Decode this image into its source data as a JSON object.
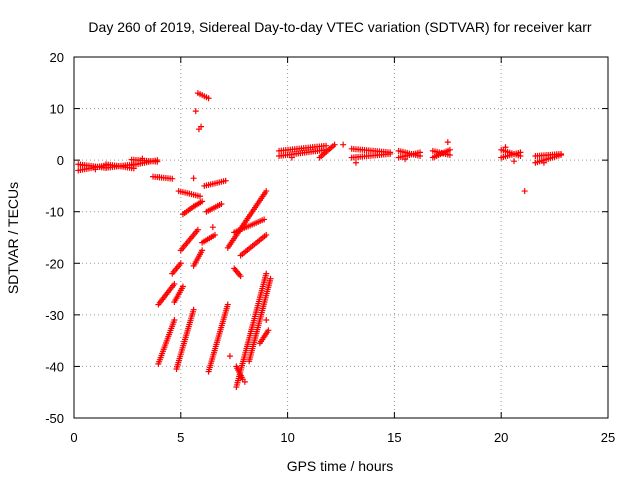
{
  "chart_data": {
    "type": "scatter",
    "title": "Day 260 of 2019, Sidereal Day-to-day VTEC variation (SDTVAR) for receiver karr",
    "xlabel": "GPS time / hours",
    "ylabel": "SDTVAR / TECUs",
    "xlim": [
      0,
      25
    ],
    "ylim": [
      -50,
      20
    ],
    "xticks": [
      0,
      5,
      10,
      15,
      20,
      25
    ],
    "yticks": [
      -50,
      -40,
      -30,
      -20,
      -10,
      0,
      10,
      20
    ],
    "grid": true,
    "marker": "+",
    "series_color": "#ff0000",
    "series": [
      {
        "name": "SDTVAR",
        "segments": [
          {
            "x0": 0.2,
            "y0": -0.8,
            "x1": 1.5,
            "y1": -1.5
          },
          {
            "x0": 0.2,
            "y0": -2.0,
            "x1": 1.5,
            "y1": -1.0
          },
          {
            "x0": 1.5,
            "y0": -1.5,
            "x1": 2.8,
            "y1": -0.8
          },
          {
            "x0": 1.5,
            "y0": -0.8,
            "x1": 2.8,
            "y1": -1.6
          },
          {
            "x0": 2.7,
            "y0": 0.1,
            "x1": 3.9,
            "y1": -0.3
          },
          {
            "x0": 2.7,
            "y0": -1.0,
            "x1": 3.9,
            "y1": 0.0
          },
          {
            "x0": 3.7,
            "y0": -3.2,
            "x1": 4.6,
            "y1": -3.6
          },
          {
            "x0": 3.95,
            "y0": -39.5,
            "x1": 4.7,
            "y1": -31.0
          },
          {
            "x0": 3.95,
            "y0": -28.0,
            "x1": 4.7,
            "y1": -24.0
          },
          {
            "x0": 4.8,
            "y0": -40.5,
            "x1": 5.6,
            "y1": -29.0
          },
          {
            "x0": 4.7,
            "y0": -27.5,
            "x1": 5.1,
            "y1": -24.5
          },
          {
            "x0": 4.6,
            "y0": -22.0,
            "x1": 5.0,
            "y1": -20.0
          },
          {
            "x0": 5.0,
            "y0": -17.5,
            "x1": 5.8,
            "y1": -13.5
          },
          {
            "x0": 5.1,
            "y0": -10.5,
            "x1": 5.6,
            "y1": -9.0
          },
          {
            "x0": 5.6,
            "y0": -9.0,
            "x1": 6.0,
            "y1": -8.0
          },
          {
            "x0": 4.9,
            "y0": -6.0,
            "x1": 5.9,
            "y1": -7.0
          },
          {
            "x0": 5.6,
            "y0": -20.5,
            "x1": 6.0,
            "y1": -17.5
          },
          {
            "x0": 6.0,
            "y0": -16.0,
            "x1": 6.6,
            "y1": -14.5
          },
          {
            "x0": 6.2,
            "y0": -10.0,
            "x1": 6.9,
            "y1": -8.5
          },
          {
            "x0": 6.1,
            "y0": -5.0,
            "x1": 7.1,
            "y1": -4.0
          },
          {
            "x0": 6.3,
            "y0": -41.0,
            "x1": 7.2,
            "y1": -28.0
          },
          {
            "x0": 7.5,
            "y0": -21.0,
            "x1": 7.8,
            "y1": -22.5
          },
          {
            "x0": 7.6,
            "y0": -40.0,
            "x1": 7.9,
            "y1": -42.5
          },
          {
            "x0": 7.6,
            "y0": -44.0,
            "x1": 9.0,
            "y1": -22.0
          },
          {
            "x0": 7.2,
            "y0": -17.0,
            "x1": 9.0,
            "y1": -6.0
          },
          {
            "x0": 7.5,
            "y0": -14.0,
            "x1": 8.9,
            "y1": -11.5
          },
          {
            "x0": 7.8,
            "y0": -18.5,
            "x1": 9.0,
            "y1": -14.5
          },
          {
            "x0": 8.2,
            "y0": -39.0,
            "x1": 9.2,
            "y1": -23.0
          },
          {
            "x0": 8.7,
            "y0": -35.5,
            "x1": 9.1,
            "y1": -33.0
          },
          {
            "x0": 5.8,
            "y0": 13.0,
            "x1": 6.3,
            "y1": 12.0
          },
          {
            "x0": 9.6,
            "y0": 0.8,
            "x1": 11.8,
            "y1": 2.0
          },
          {
            "x0": 9.6,
            "y0": 1.8,
            "x1": 11.8,
            "y1": 2.8
          },
          {
            "x0": 11.5,
            "y0": 0.5,
            "x1": 12.2,
            "y1": 3.0
          },
          {
            "x0": 13.0,
            "y0": 2.2,
            "x1": 14.8,
            "y1": 1.5
          },
          {
            "x0": 13.0,
            "y0": 0.5,
            "x1": 14.8,
            "y1": 1.2
          },
          {
            "x0": 15.2,
            "y0": 1.8,
            "x1": 16.2,
            "y1": 0.8
          },
          {
            "x0": 15.2,
            "y0": 0.5,
            "x1": 16.2,
            "y1": 1.5
          },
          {
            "x0": 16.8,
            "y0": 0.5,
            "x1": 17.6,
            "y1": 2.0
          },
          {
            "x0": 16.8,
            "y0": 1.8,
            "x1": 17.6,
            "y1": 1.0
          },
          {
            "x0": 20.0,
            "y0": 2.0,
            "x1": 20.9,
            "y1": 0.8
          },
          {
            "x0": 20.0,
            "y0": 0.5,
            "x1": 20.9,
            "y1": 1.5
          },
          {
            "x0": 21.6,
            "y0": -0.5,
            "x1": 22.8,
            "y1": 1.0
          },
          {
            "x0": 21.6,
            "y0": 0.8,
            "x1": 22.8,
            "y1": 1.2
          }
        ],
        "points": [
          {
            "x": 5.7,
            "y": 9.5
          },
          {
            "x": 5.85,
            "y": 6.0
          },
          {
            "x": 5.95,
            "y": 6.5
          },
          {
            "x": 5.6,
            "y": -3.5
          },
          {
            "x": 6.5,
            "y": -13.0
          },
          {
            "x": 7.3,
            "y": -38.0
          },
          {
            "x": 8.0,
            "y": -43.0
          },
          {
            "x": 9.0,
            "y": -31.0
          },
          {
            "x": 10.2,
            "y": 0.5
          },
          {
            "x": 12.6,
            "y": 3.0
          },
          {
            "x": 13.2,
            "y": -0.5
          },
          {
            "x": 15.5,
            "y": 0.2
          },
          {
            "x": 17.5,
            "y": 3.5
          },
          {
            "x": 20.2,
            "y": 2.5
          },
          {
            "x": 20.6,
            "y": -0.2
          },
          {
            "x": 21.1,
            "y": -6.0
          },
          {
            "x": 22.0,
            "y": -0.5
          },
          {
            "x": 0.4,
            "y": -1.0
          },
          {
            "x": 1.0,
            "y": -1.8
          },
          {
            "x": 3.2,
            "y": 0.3
          },
          {
            "x": 4.0,
            "y": -3.3
          }
        ]
      }
    ]
  }
}
